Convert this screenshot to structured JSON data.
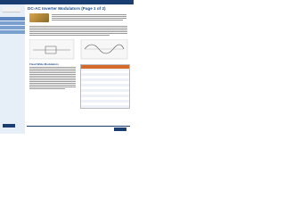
{
  "header": {
    "title": "DC-AC Inverter Modulators (Page 1 of 2)"
  },
  "sections": [
    {
      "heading": "Fixed Wide Modulators"
    }
  ]
}
